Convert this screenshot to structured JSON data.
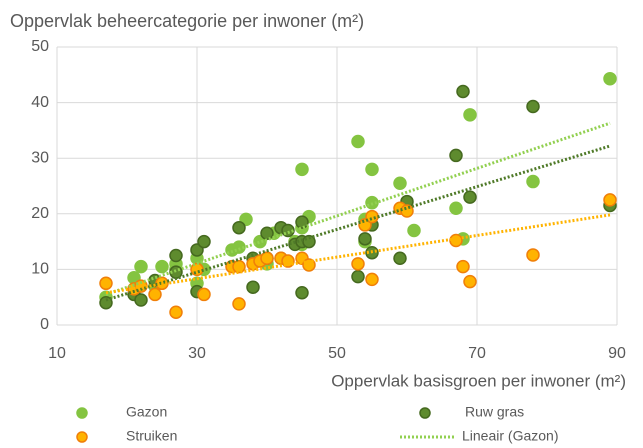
{
  "chart_data": {
    "type": "scatter",
    "title": "Oppervlak beheercategorie per inwoner (m²)",
    "xlabel": "Oppervlak basisgroen per inwoner (m²)",
    "xlim": [
      10,
      90
    ],
    "xticks": [
      10,
      30,
      50,
      70,
      90
    ],
    "ylim": [
      0,
      50
    ],
    "yticks": [
      0,
      10,
      20,
      30,
      40,
      50
    ],
    "grid": true,
    "legend": "bottom",
    "series": [
      {
        "name": "Gazon",
        "color": "#84c441",
        "edgecolor": "#84c441",
        "x": [
          17,
          21,
          22,
          24,
          25,
          27,
          27,
          30,
          30,
          31,
          35,
          36,
          37,
          39,
          40,
          41,
          44,
          45,
          45,
          46,
          53,
          54,
          55,
          55,
          59,
          61,
          67,
          69,
          68,
          78,
          89,
          54,
          45,
          42
        ],
        "values": [
          5,
          8.5,
          10.5,
          7,
          10.5,
          11,
          10,
          7.5,
          12,
          10,
          13.5,
          14,
          19,
          15,
          11,
          16.5,
          15,
          17.5,
          28,
          19.5,
          33,
          19,
          28,
          22,
          25.5,
          17,
          21,
          37.8,
          15.5,
          25.8,
          44.3,
          15,
          14.5,
          12
        ]
      },
      {
        "name": "Ruw gras",
        "color": "#5e8b2e",
        "edgecolor": "#45691f",
        "x": [
          17,
          21,
          22,
          24,
          27,
          27,
          30,
          30,
          31,
          36,
          38,
          38,
          40,
          42,
          43,
          44,
          45,
          45,
          45,
          46,
          53,
          54,
          55,
          55,
          59,
          60,
          67,
          68,
          69,
          78,
          89,
          40
        ],
        "values": [
          4,
          5.5,
          4.5,
          8,
          12.5,
          9.5,
          6,
          13.5,
          15,
          17.5,
          6.8,
          12,
          16.5,
          17.5,
          17,
          14.5,
          18.5,
          15,
          5.8,
          15,
          8.7,
          15.5,
          13,
          18,
          12,
          22.2,
          30.5,
          42,
          23,
          39.3,
          21.5,
          12
        ]
      },
      {
        "name": "Struiken",
        "color": "#ffb300",
        "edgecolor": "#f07f09",
        "x": [
          17,
          21,
          22,
          24,
          27,
          31,
          35,
          36,
          36,
          38,
          39,
          40,
          42,
          43,
          45,
          46,
          53,
          54,
          55,
          55,
          59,
          60,
          67,
          68,
          69,
          78,
          89,
          30,
          25
        ],
        "values": [
          7.5,
          6.5,
          7,
          5.5,
          2.3,
          5.5,
          10.5,
          3.8,
          10.5,
          11,
          11.5,
          12,
          12,
          11.5,
          12,
          10.8,
          11,
          18,
          19.5,
          8.2,
          21,
          20.5,
          15.2,
          10.5,
          7.8,
          12.6,
          22.5,
          10,
          7.5
        ]
      }
    ],
    "trendlines": [
      {
        "name": "Lineair (Gazon)",
        "color": "#92d050",
        "x": [
          17,
          89
        ],
        "values": [
          5.5,
          36.3
        ]
      },
      {
        "color": "#4f7a28",
        "x": [
          17,
          89
        ],
        "values": [
          4.5,
          32.2
        ]
      },
      {
        "color": "#ffb300",
        "x": [
          17,
          89
        ],
        "values": [
          5.8,
          19.8
        ]
      }
    ]
  }
}
